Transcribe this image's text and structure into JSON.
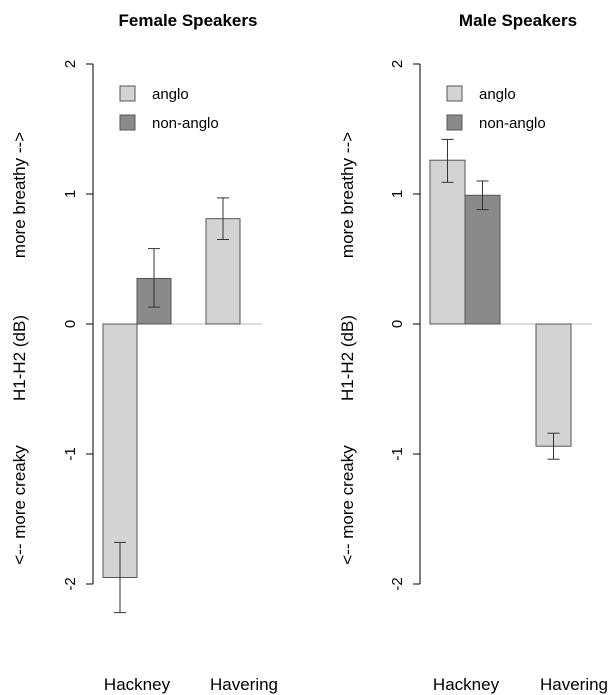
{
  "colors": {
    "anglo": "#d3d3d3",
    "non_anglo": "#8a8a8a",
    "stroke": "#555555"
  },
  "chart_data": [
    {
      "type": "bar",
      "title": "Female Speakers",
      "ylabel_left": "<-- more creaky",
      "ylabel_mid": "H1-H2 (dB)",
      "ylabel_right": "more breathy -->",
      "ylim": [
        -2,
        2
      ],
      "yticks": [
        2,
        1,
        0,
        -1,
        -2
      ],
      "categories": [
        "Hackney",
        "Havering"
      ],
      "legend": {
        "position": "top-left",
        "labels": [
          "anglo",
          "non-anglo"
        ]
      },
      "series": [
        {
          "name": "anglo",
          "values": [
            -1.95,
            0.81
          ],
          "error_low": [
            -2.22,
            0.65
          ],
          "error_high": [
            -1.68,
            0.97
          ]
        },
        {
          "name": "non-anglo",
          "values": [
            0.35,
            null
          ],
          "error_low": [
            0.13,
            null
          ],
          "error_high": [
            0.58,
            null
          ]
        }
      ]
    },
    {
      "type": "bar",
      "title": "Male Speakers",
      "ylabel_left": "<-- more creaky",
      "ylabel_mid": "H1-H2 (dB)",
      "ylabel_right": "more breathy -->",
      "ylim": [
        -2,
        2
      ],
      "yticks": [
        2,
        1,
        0,
        -1,
        -2
      ],
      "categories": [
        "Hackney",
        "Havering"
      ],
      "legend": {
        "position": "top-left",
        "labels": [
          "anglo",
          "non-anglo"
        ]
      },
      "series": [
        {
          "name": "anglo",
          "values": [
            1.26,
            -0.94
          ],
          "error_low": [
            1.09,
            -1.04
          ],
          "error_high": [
            1.42,
            -0.84
          ]
        },
        {
          "name": "non-anglo",
          "values": [
            0.99,
            null
          ],
          "error_low": [
            0.88,
            null
          ],
          "error_high": [
            1.1,
            null
          ]
        }
      ]
    }
  ]
}
